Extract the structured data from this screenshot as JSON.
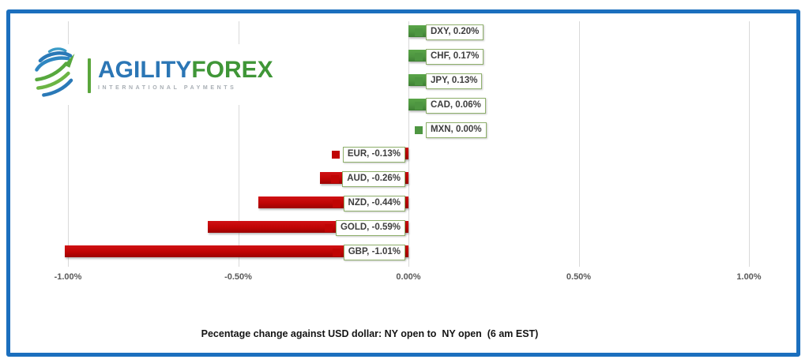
{
  "frame": {
    "border_color": "#1b6fbe"
  },
  "logo": {
    "brand_part1": "AGILITY",
    "brand_part2": "FOREX",
    "tagline": "INTERNATIONAL PAYMENTS",
    "colors": {
      "part1": "#2b76b5",
      "part2": "#3f9637",
      "tagline": "#a8aeb4",
      "divider": "#5aa63c",
      "globe_blue": "#2a79b7",
      "globe_teal": "#3a9bc7",
      "globe_green": "#57a83e"
    }
  },
  "chart_data": {
    "type": "bar",
    "orientation": "horizontal",
    "title": "Pecentage change against USD dollar: NY open to  NY open  (6 am EST)",
    "xlabel": "",
    "ylabel": "",
    "xlim": [
      -1.0,
      1.0
    ],
    "grid": true,
    "positive_color": "#4e9641",
    "negative_color": "#c00404",
    "label_box_border_color": "#8fb06c",
    "gridline_color": "#d9d9d9",
    "bars": [
      {
        "category": "DXY",
        "value": 0.2,
        "label": "DXY, 0.20%"
      },
      {
        "category": "CHF",
        "value": 0.17,
        "label": "CHF, 0.17%"
      },
      {
        "category": "JPY",
        "value": 0.13,
        "label": "JPY, 0.13%"
      },
      {
        "category": "CAD",
        "value": 0.06,
        "label": "CAD, 0.06%"
      },
      {
        "category": "MXN",
        "value": 0.0,
        "label": "MXN, 0.00%"
      },
      {
        "category": "EUR",
        "value": -0.13,
        "label": "EUR, -0.13%"
      },
      {
        "category": "AUD",
        "value": -0.26,
        "label": "AUD, -0.26%"
      },
      {
        "category": "NZD",
        "value": -0.44,
        "label": "NZD, -0.44%"
      },
      {
        "category": "GOLD",
        "value": -0.59,
        "label": "GOLD, -0.59%"
      },
      {
        "category": "GBP",
        "value": -1.01,
        "label": "GBP, -1.01%"
      }
    ],
    "x_axis": {
      "ticks": [
        {
          "label": "-1.00%",
          "value": -1.0
        },
        {
          "label": "-0.50%",
          "value": -0.5
        },
        {
          "label": "0.00%",
          "value": 0.0
        },
        {
          "label": "0.50%",
          "value": 0.5
        },
        {
          "label": "1.00%",
          "value": 1.0
        }
      ]
    }
  }
}
